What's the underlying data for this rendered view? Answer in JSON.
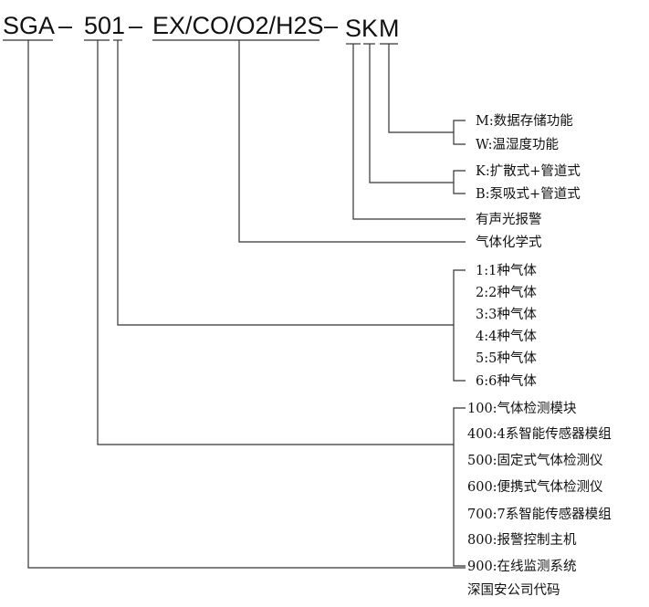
{
  "header": {
    "seg_sga": "SGA",
    "dash1": "–",
    "seg_50": "50",
    "seg_1": "1",
    "dash2": "–",
    "seg_gas": "EX/CO/O2/H2S",
    "dash3": "–",
    "seg_s": "S",
    "seg_k": "K",
    "seg_m": "M"
  },
  "groups": {
    "function": [
      "M:数据存储功能",
      "W:温湿度功能"
    ],
    "sampling": [
      "K:扩散式+管道式",
      "B:泵吸式+管道式"
    ],
    "alarm": "有声光报警",
    "gas_formula": "气体化学式",
    "gas_count": [
      "1:1种气体",
      "2:2种气体",
      "3:3种气体",
      "4:4种气体",
      "5:5种气体",
      "6:6种气体"
    ],
    "series": [
      "100:气体检测模块",
      "400:4系智能传感器模组",
      "500:固定式气体检测仪",
      "600:便携式气体检测仪",
      "700:7系智能传感器模组",
      "800:报警控制主机",
      "900:在线监测系统"
    ],
    "company": "深国安公司代码"
  }
}
